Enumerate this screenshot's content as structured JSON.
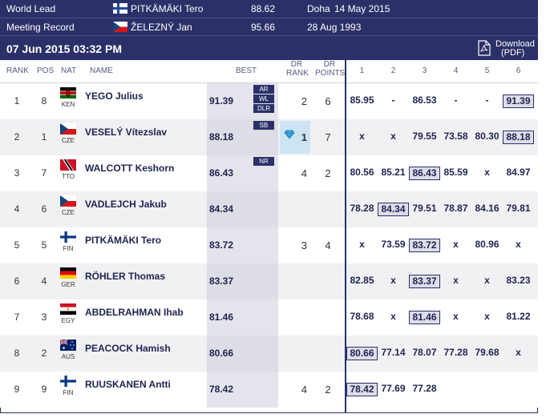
{
  "world_lead": {
    "label": "World Lead",
    "athlete": "PITKÄMÄKI Tero",
    "mark": "88.62",
    "venue": "Doha",
    "date": "14 May 2015"
  },
  "meeting_record": {
    "label": "Meeting Record",
    "athlete": "ŽELEZNÝ Jan",
    "mark": "95.66",
    "date": "28 Aug 1993"
  },
  "date_bar": {
    "date": "07 Jun 2015",
    "time": "03:32 PM"
  },
  "download": {
    "line1": "Download",
    "line2": "(PDF)"
  },
  "headers": {
    "rank": "RANK",
    "pos": "POS",
    "nat": "NAT",
    "name": "NAME",
    "best": "BEST",
    "dr_rank_1": "DR",
    "dr_rank_2": "RANK",
    "dr_points_1": "DR",
    "dr_points_2": "POINTS",
    "attempts": [
      "1",
      "2",
      "3",
      "4",
      "5",
      "6"
    ]
  },
  "colors": {
    "navy": "#2b3168",
    "alt_row": "#f1f1f4",
    "dr_highlight": "#cce4f4"
  },
  "rows": [
    {
      "rank": "1",
      "pos": "8",
      "nat": "KEN",
      "flag": "ken-flag",
      "name": "YEGO Julius",
      "best": "91.39",
      "badges": [
        "AR",
        "WL",
        "DLR"
      ],
      "dr_rank": "2",
      "dr_points": "6",
      "attempts": [
        "85.95",
        "-",
        "86.53",
        "-",
        "-",
        "91.39"
      ],
      "best_attempt": 5
    },
    {
      "rank": "2",
      "pos": "1",
      "nat": "CZE",
      "flag": "cze-flag",
      "name": "VESELÝ Vítezslav",
      "best": "88.18",
      "badges": [
        "SB"
      ],
      "dr_rank": "1",
      "dr_points": "7",
      "attempts": [
        "x",
        "x",
        "79.55",
        "73.58",
        "80.30",
        "88.18"
      ],
      "best_attempt": 5,
      "dr_leader": true
    },
    {
      "rank": "3",
      "pos": "7",
      "nat": "TTO",
      "flag": "tto-flag",
      "name": "WALCOTT Keshorn",
      "best": "86.43",
      "badges": [
        "NR"
      ],
      "dr_rank": "4",
      "dr_points": "2",
      "attempts": [
        "80.56",
        "85.21",
        "86.43",
        "85.59",
        "x",
        "84.97"
      ],
      "best_attempt": 2
    },
    {
      "rank": "4",
      "pos": "6",
      "nat": "CZE",
      "flag": "cze-flag",
      "name": "VADLEJCH Jakub",
      "best": "84.34",
      "badges": [],
      "dr_rank": "",
      "dr_points": "",
      "attempts": [
        "78.28",
        "84.34",
        "79.51",
        "78.87",
        "84.16",
        "79.81"
      ],
      "best_attempt": 1
    },
    {
      "rank": "5",
      "pos": "5",
      "nat": "FIN",
      "flag": "fin-flag",
      "name": "PITKÄMÄKI Tero",
      "best": "83.72",
      "badges": [],
      "dr_rank": "3",
      "dr_points": "4",
      "attempts": [
        "x",
        "73.59",
        "83.72",
        "x",
        "80.96",
        "x"
      ],
      "best_attempt": 2
    },
    {
      "rank": "6",
      "pos": "4",
      "nat": "GER",
      "flag": "ger-flag",
      "name": "RÖHLER Thomas",
      "best": "83.37",
      "badges": [],
      "dr_rank": "",
      "dr_points": "",
      "attempts": [
        "82.85",
        "x",
        "83.37",
        "x",
        "x",
        "83.23"
      ],
      "best_attempt": 2
    },
    {
      "rank": "7",
      "pos": "3",
      "nat": "EGY",
      "flag": "egy-flag",
      "name": "ABDELRAHMAN Ihab",
      "best": "81.46",
      "badges": [],
      "dr_rank": "",
      "dr_points": "",
      "attempts": [
        "78.68",
        "x",
        "81.46",
        "x",
        "x",
        "81.22"
      ],
      "best_attempt": 2
    },
    {
      "rank": "8",
      "pos": "2",
      "nat": "AUS",
      "flag": "aus-flag",
      "name": "PEACOCK Hamish",
      "best": "80.66",
      "badges": [],
      "dr_rank": "",
      "dr_points": "",
      "attempts": [
        "80.66",
        "77.14",
        "78.07",
        "77.28",
        "79.68",
        "x"
      ],
      "best_attempt": 0
    },
    {
      "rank": "9",
      "pos": "9",
      "nat": "FIN",
      "flag": "fin-flag",
      "name": "RUUSKANEN Antti",
      "best": "78.42",
      "badges": [],
      "dr_rank": "4",
      "dr_points": "2",
      "attempts": [
        "78.42",
        "77.69",
        "77.28",
        "",
        "",
        ""
      ],
      "best_attempt": 0
    }
  ]
}
